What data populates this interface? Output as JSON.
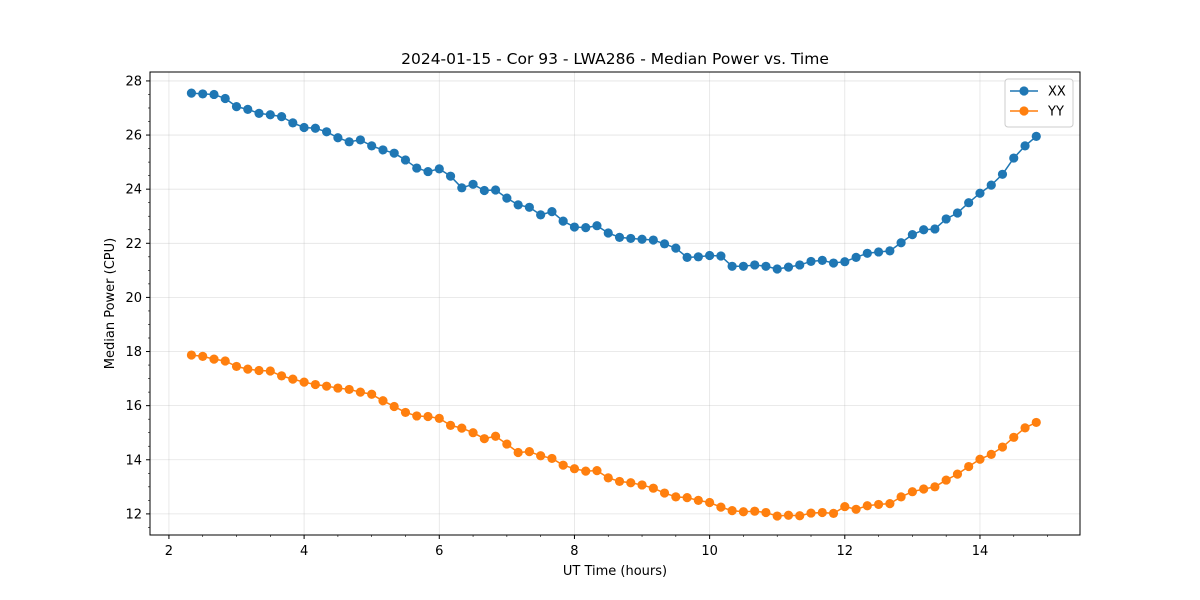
{
  "chart_data": {
    "type": "line",
    "title": "2024-01-15 - Cor 93 - LWA286 - Median Power vs. Time",
    "xlabel": "UT Time (hours)",
    "ylabel": "Median Power (CPU)",
    "xlim": [
      1.72,
      15.48
    ],
    "ylim": [
      11.22,
      28.33
    ],
    "xticks": [
      2,
      4,
      6,
      8,
      10,
      12,
      14
    ],
    "yticks": [
      12,
      14,
      16,
      18,
      20,
      22,
      24,
      26,
      28
    ],
    "grid": true,
    "legend_position": "top-right",
    "x": [
      2.333,
      2.5,
      2.667,
      2.833,
      3.0,
      3.167,
      3.333,
      3.5,
      3.667,
      3.833,
      4.0,
      4.167,
      4.333,
      4.5,
      4.667,
      4.833,
      5.0,
      5.167,
      5.333,
      5.5,
      5.667,
      5.833,
      6.0,
      6.167,
      6.333,
      6.5,
      6.667,
      6.833,
      7.0,
      7.167,
      7.333,
      7.5,
      7.667,
      7.833,
      8.0,
      8.167,
      8.333,
      8.5,
      8.667,
      8.833,
      9.0,
      9.167,
      9.333,
      9.5,
      9.667,
      9.833,
      10.0,
      10.167,
      10.333,
      10.5,
      10.667,
      10.833,
      11.0,
      11.167,
      11.333,
      11.5,
      11.667,
      11.833,
      12.0,
      12.167,
      12.333,
      12.5,
      12.667,
      12.833,
      13.0,
      13.167,
      13.333,
      13.5,
      13.667,
      13.833,
      14.0,
      14.167,
      14.333,
      14.5,
      14.667,
      14.833
    ],
    "series": [
      {
        "name": "XX",
        "color": "#1f77b4",
        "values": [
          27.55,
          27.52,
          27.5,
          27.35,
          27.05,
          26.95,
          26.8,
          26.75,
          26.68,
          26.45,
          26.28,
          26.25,
          26.12,
          25.9,
          25.75,
          25.82,
          25.6,
          25.45,
          25.33,
          25.08,
          24.78,
          24.65,
          24.75,
          24.48,
          24.05,
          24.18,
          23.95,
          23.97,
          23.67,
          23.42,
          23.33,
          23.05,
          23.17,
          22.82,
          22.6,
          22.58,
          22.65,
          22.38,
          22.22,
          22.18,
          22.15,
          22.12,
          21.98,
          21.82,
          21.48,
          21.5,
          21.55,
          21.53,
          21.15,
          21.15,
          21.2,
          21.15,
          21.05,
          21.12,
          21.2,
          21.33,
          21.37,
          21.27,
          21.32,
          21.48,
          21.63,
          21.68,
          21.72,
          22.02,
          22.32,
          22.5,
          22.53,
          22.9,
          23.12,
          23.5,
          23.85,
          24.15,
          24.55,
          25.15,
          25.6,
          25.95
        ]
      },
      {
        "name": "YY",
        "color": "#ff7f0e",
        "values": [
          17.87,
          17.82,
          17.72,
          17.65,
          17.45,
          17.35,
          17.3,
          17.28,
          17.1,
          16.98,
          16.87,
          16.78,
          16.72,
          16.65,
          16.6,
          16.5,
          16.42,
          16.18,
          15.97,
          15.75,
          15.62,
          15.6,
          15.53,
          15.27,
          15.17,
          15.0,
          14.78,
          14.87,
          14.58,
          14.27,
          14.3,
          14.15,
          14.05,
          13.8,
          13.67,
          13.58,
          13.6,
          13.33,
          13.2,
          13.15,
          13.07,
          12.95,
          12.77,
          12.63,
          12.6,
          12.5,
          12.42,
          12.25,
          12.12,
          12.08,
          12.1,
          12.05,
          11.92,
          11.95,
          11.93,
          12.03,
          12.05,
          12.02,
          12.27,
          12.17,
          12.3,
          12.35,
          12.38,
          12.63,
          12.82,
          12.92,
          13.0,
          13.25,
          13.47,
          13.75,
          14.02,
          14.2,
          14.47,
          14.83,
          15.18,
          15.38
        ]
      }
    ]
  }
}
